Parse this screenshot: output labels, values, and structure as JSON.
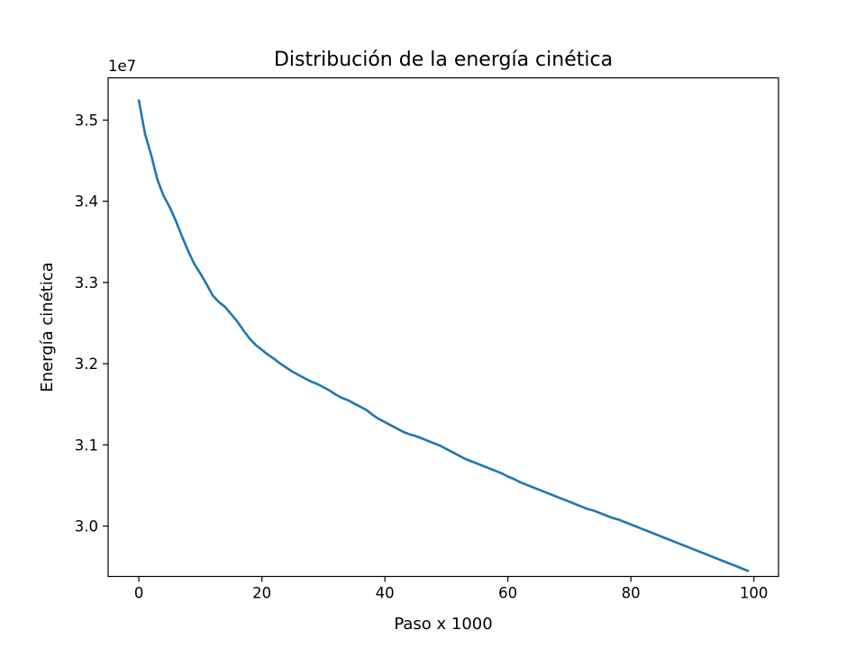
{
  "chart_data": {
    "type": "line",
    "title": "Distribución de la energía cinética",
    "xlabel": "Paso x 1000",
    "ylabel": "Energía cinética",
    "y_offset_label": "1e7",
    "xlim": [
      -5,
      104
    ],
    "ylim": [
      29380000,
      35520000
    ],
    "x_ticks": [
      0,
      20,
      40,
      60,
      80,
      100
    ],
    "x_tick_labels": [
      "0",
      "20",
      "40",
      "60",
      "80",
      "100"
    ],
    "y_ticks": [
      30000000,
      31000000,
      32000000,
      33000000,
      34000000,
      35000000
    ],
    "y_tick_labels": [
      "3.0",
      "3.1",
      "3.2",
      "3.3",
      "3.4",
      "3.5"
    ],
    "grid": false,
    "line_color": "#1f77b4",
    "series": [
      {
        "points": [
          [
            0,
            35240000
          ],
          [
            1,
            34830000
          ],
          [
            2,
            34570000
          ],
          [
            3,
            34270000
          ],
          [
            4,
            34070000
          ],
          [
            5,
            33930000
          ],
          [
            6,
            33760000
          ],
          [
            7,
            33570000
          ],
          [
            8,
            33390000
          ],
          [
            9,
            33230000
          ],
          [
            10,
            33110000
          ],
          [
            11,
            32980000
          ],
          [
            12,
            32840000
          ],
          [
            13,
            32760000
          ],
          [
            14,
            32700000
          ],
          [
            15,
            32610000
          ],
          [
            16,
            32520000
          ],
          [
            17,
            32410000
          ],
          [
            18,
            32310000
          ],
          [
            19,
            32230000
          ],
          [
            20,
            32170000
          ],
          [
            21,
            32110000
          ],
          [
            22,
            32060000
          ],
          [
            23,
            32000000
          ],
          [
            24,
            31950000
          ],
          [
            25,
            31900000
          ],
          [
            26,
            31860000
          ],
          [
            27,
            31820000
          ],
          [
            28,
            31780000
          ],
          [
            29,
            31750000
          ],
          [
            30,
            31710000
          ],
          [
            31,
            31670000
          ],
          [
            32,
            31620000
          ],
          [
            33,
            31580000
          ],
          [
            34,
            31550000
          ],
          [
            35,
            31510000
          ],
          [
            36,
            31470000
          ],
          [
            37,
            31430000
          ],
          [
            38,
            31370000
          ],
          [
            39,
            31320000
          ],
          [
            40,
            31280000
          ],
          [
            41,
            31240000
          ],
          [
            42,
            31200000
          ],
          [
            43,
            31160000
          ],
          [
            44,
            31130000
          ],
          [
            45,
            31110000
          ],
          [
            46,
            31080000
          ],
          [
            47,
            31050000
          ],
          [
            48,
            31020000
          ],
          [
            49,
            30990000
          ],
          [
            50,
            30950000
          ],
          [
            51,
            30910000
          ],
          [
            52,
            30870000
          ],
          [
            53,
            30830000
          ],
          [
            54,
            30800000
          ],
          [
            55,
            30770000
          ],
          [
            56,
            30740000
          ],
          [
            57,
            30710000
          ],
          [
            58,
            30680000
          ],
          [
            59,
            30650000
          ],
          [
            60,
            30610000
          ],
          [
            61,
            30580000
          ],
          [
            62,
            30540000
          ],
          [
            63,
            30510000
          ],
          [
            64,
            30480000
          ],
          [
            65,
            30450000
          ],
          [
            66,
            30420000
          ],
          [
            67,
            30390000
          ],
          [
            68,
            30360000
          ],
          [
            69,
            30330000
          ],
          [
            70,
            30300000
          ],
          [
            71,
            30270000
          ],
          [
            72,
            30240000
          ],
          [
            73,
            30210000
          ],
          [
            74,
            30190000
          ],
          [
            75,
            30160000
          ],
          [
            76,
            30130000
          ],
          [
            77,
            30100000
          ],
          [
            78,
            30080000
          ],
          [
            79,
            30050000
          ],
          [
            80,
            30020000
          ],
          [
            81,
            29990000
          ],
          [
            82,
            29960000
          ],
          [
            83,
            29930000
          ],
          [
            84,
            29900000
          ],
          [
            85,
            29870000
          ],
          [
            86,
            29840000
          ],
          [
            87,
            29810000
          ],
          [
            88,
            29780000
          ],
          [
            89,
            29750000
          ],
          [
            90,
            29720000
          ],
          [
            91,
            29690000
          ],
          [
            92,
            29660000
          ],
          [
            93,
            29630000
          ],
          [
            94,
            29600000
          ],
          [
            95,
            29570000
          ],
          [
            96,
            29540000
          ],
          [
            97,
            29510000
          ],
          [
            98,
            29480000
          ],
          [
            99,
            29450000
          ]
        ]
      }
    ]
  }
}
